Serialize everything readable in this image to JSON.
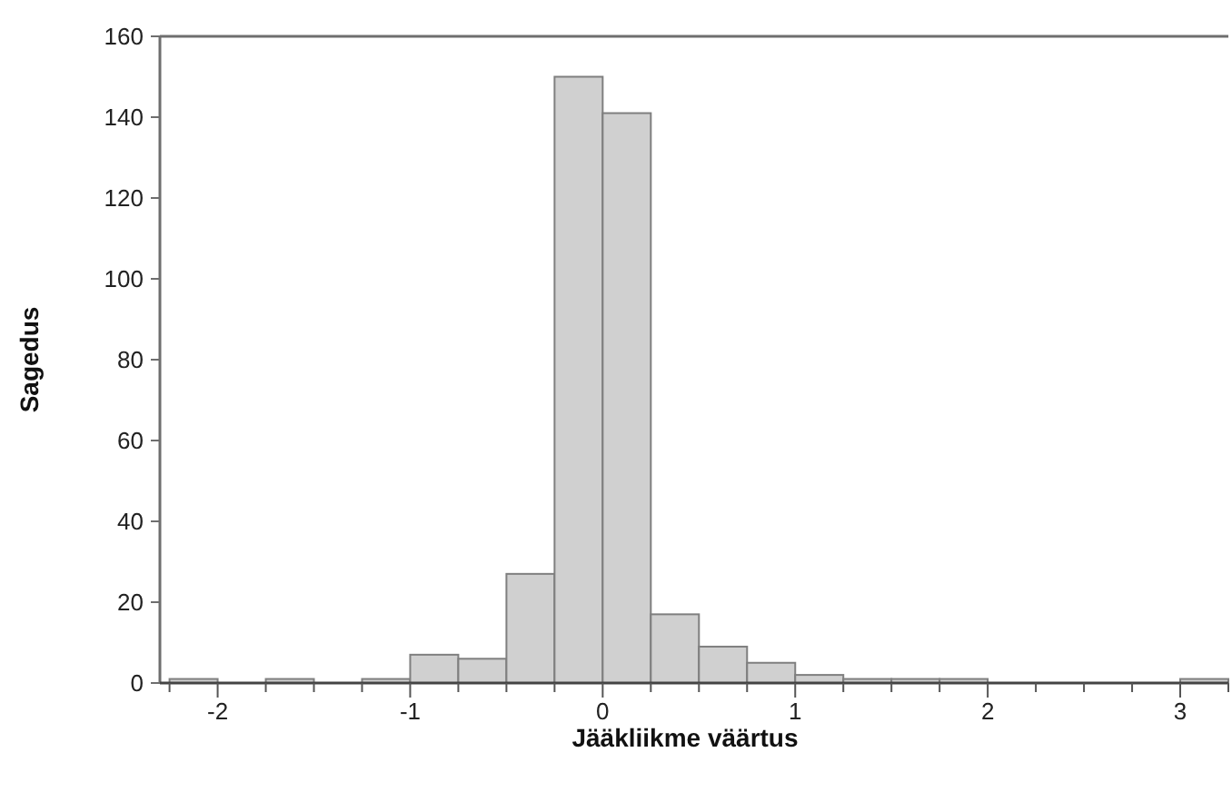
{
  "chart_data": {
    "type": "histogram",
    "xlabel": "Jääkliikme väärtus",
    "ylabel": "Sagedus",
    "color": "#d0d0d0",
    "bins": [
      -2.25,
      -2,
      -1.75,
      -1.5,
      -1.25,
      -1,
      -0.75,
      -0.5,
      -0.25,
      0,
      0.25,
      0.5,
      0.75,
      1,
      1.25,
      1.5,
      1.75,
      2,
      2.25,
      2.5,
      2.75,
      3,
      3.25
    ],
    "values": [
      1,
      0,
      1,
      0,
      1,
      7,
      6,
      27,
      150,
      141,
      17,
      9,
      5,
      2,
      1,
      1,
      1,
      0,
      0,
      0,
      0,
      1
    ],
    "xlim": [
      -2.3,
      3.25
    ],
    "xticks": [
      {
        "value": -2.25,
        "label": null
      },
      {
        "value": -2,
        "label": "-2"
      },
      {
        "value": -1.75,
        "label": null
      },
      {
        "value": -1.5,
        "label": null
      },
      {
        "value": -1.25,
        "label": null
      },
      {
        "value": -1,
        "label": "-1"
      },
      {
        "value": -0.75,
        "label": null
      },
      {
        "value": -0.5,
        "label": null
      },
      {
        "value": -0.25,
        "label": null
      },
      {
        "value": 0,
        "label": "0"
      },
      {
        "value": 0.25,
        "label": null
      },
      {
        "value": 0.5,
        "label": null
      },
      {
        "value": 0.75,
        "label": null
      },
      {
        "value": 1,
        "label": "1"
      },
      {
        "value": 1.25,
        "label": null
      },
      {
        "value": 1.5,
        "label": null
      },
      {
        "value": 1.75,
        "label": null
      },
      {
        "value": 2,
        "label": "2"
      },
      {
        "value": 2.25,
        "label": null
      },
      {
        "value": 2.5,
        "label": null
      },
      {
        "value": 2.75,
        "label": null
      },
      {
        "value": 3,
        "label": "3"
      },
      {
        "value": 3.25,
        "label": null
      }
    ],
    "ylim": [
      0,
      160
    ],
    "yticks": [
      0,
      20,
      40,
      60,
      80,
      100,
      120,
      140,
      160
    ],
    "grid": false
  }
}
